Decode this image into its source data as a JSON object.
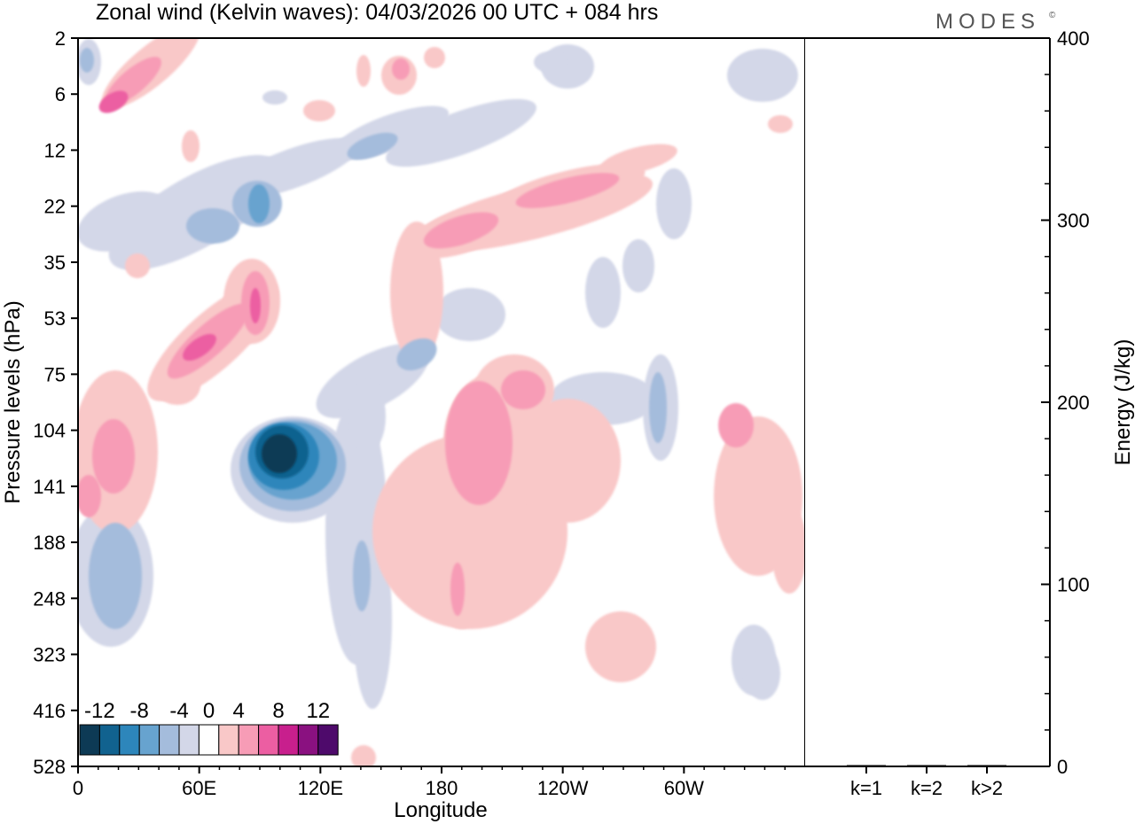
{
  "title": "Zonal wind (Kelvin waves):  04/03/2026  00 UTC  + 084 hrs",
  "brand": "MODES",
  "brand_mark": "©",
  "chart_data": [
    {
      "type": "heatmap",
      "title": "Zonal wind (Kelvin waves):  04/03/2026  00 UTC  + 084 hrs",
      "xlabel": "Longitude",
      "ylabel": "Pressure levels (hPa)",
      "x_tick_labels": [
        "0",
        "60E",
        "120E",
        "180",
        "120W",
        "60W"
      ],
      "x_tick_degrees": [
        0,
        60,
        120,
        180,
        240,
        300
      ],
      "xlim_degrees": [
        0,
        360
      ],
      "y_tick_labels": [
        "2",
        "6",
        "12",
        "22",
        "35",
        "53",
        "75",
        "104",
        "141",
        "188",
        "248",
        "323",
        "416",
        "528"
      ],
      "y_scale": "level index (top = 2 hPa, bottom = 528 hPa)",
      "colorbar": {
        "labels": [
          "-12",
          "-8",
          "-4",
          "0",
          "4",
          "8",
          "12"
        ],
        "label_positions": [
          -12,
          -8,
          -4,
          0,
          4,
          8,
          12
        ],
        "bounds": [
          -14,
          -12,
          -10,
          -8,
          -6,
          -4,
          -2,
          2,
          4,
          6,
          8,
          10,
          12,
          14
        ],
        "colors": [
          "#0d3a55",
          "#11628f",
          "#2d86bb",
          "#67a3cf",
          "#a4bcdc",
          "#d3d7e8",
          "#ffffff",
          "#f9c8c8",
          "#f79cb6",
          "#ec5ea2",
          "#c81f8d",
          "#8a1180",
          "#4e0a6b"
        ]
      },
      "features": [
        {
          "name": "easterly band",
          "sign": "negative",
          "lon_start": 2,
          "lon_end": 110,
          "p_start": "6",
          "p_end": "35",
          "peak": -8
        },
        {
          "name": "westerly descending band",
          "sign": "positive",
          "lon_start": 8,
          "lon_end": 96,
          "p_start": "2",
          "p_end": "188",
          "peak": 8
        },
        {
          "name": "westerly upper band",
          "sign": "positive",
          "lon_start": 120,
          "lon_end": 300,
          "p_start": "12",
          "p_end": "75",
          "peak": 8
        },
        {
          "name": "upper-tropospheric easterly core",
          "sign": "negative",
          "lon_start": 80,
          "lon_end": 125,
          "p_start": "104",
          "p_end": "188",
          "peak": -12
        },
        {
          "name": "central Pacific westerly",
          "sign": "positive",
          "lon_start": 155,
          "lon_end": 260,
          "p_start": "75",
          "p_end": "323",
          "peak": 8
        },
        {
          "name": "eastern Pacific westerly",
          "sign": "positive",
          "lon_start": 320,
          "lon_end": 360,
          "p_start": "104",
          "p_end": "248",
          "peak": 4
        }
      ]
    },
    {
      "type": "bar",
      "categories": [
        "k=1",
        "k=2",
        "k>2"
      ],
      "values": [
        0.5,
        0.3,
        0.6
      ],
      "ylabel": "Energy (J/kg)",
      "ylim": [
        0,
        400
      ],
      "y_tick_labels": [
        "0",
        "100",
        "200",
        "300",
        "400"
      ],
      "y_tick_values": [
        0,
        100,
        200,
        300,
        400
      ],
      "y_minor_step": 20
    }
  ]
}
